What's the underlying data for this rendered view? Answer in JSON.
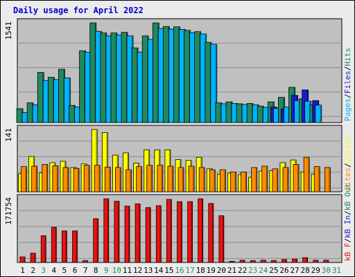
{
  "chart_data": {
    "type": "bar",
    "title": "Daily usage for April 2022",
    "categories": [
      "1",
      "2",
      "3",
      "4",
      "5",
      "6",
      "7",
      "8",
      "9",
      "10",
      "11",
      "12",
      "13",
      "14",
      "15",
      "16",
      "17",
      "18",
      "19",
      "20",
      "21",
      "22",
      "23",
      "24",
      "25",
      "26",
      "27",
      "28",
      "29",
      "30",
      "31"
    ],
    "weekend_days": [
      "3",
      "9",
      "10",
      "16",
      "17",
      "23",
      "24",
      "30",
      "31"
    ],
    "panels": [
      {
        "name": "hits-files-pages",
        "max_label": "1541",
        "ylim": [
          0,
          1541
        ],
        "grid": true,
        "legend": [
          "Pages",
          "/",
          "Files",
          "/",
          "Hits"
        ],
        "series": [
          {
            "name": "Hits",
            "color": "#1f8a5f",
            "values": [
              215,
              305,
              775,
              700,
              825,
              265,
              1110,
              1541,
              1385,
              1385,
              1395,
              1155,
              1340,
              1540,
              1485,
              1480,
              1425,
              1405,
              1240,
              305,
              320,
              290,
              295,
              255,
              320,
              390,
              545,
              370,
              275,
              0,
              0
            ]
          },
          {
            "name": "Files",
            "color": "#1a1ad0",
            "values": [
              0,
              0,
              0,
              0,
              0,
              0,
              0,
              0,
              0,
              0,
              0,
              0,
              0,
              0,
              0,
              0,
              0,
              0,
              0,
              0,
              0,
              0,
              0,
              0,
              240,
              210,
              420,
              505,
              340,
              0,
              0
            ]
          },
          {
            "name": "Pages",
            "color": "#00b4ff",
            "values": [
              155,
              275,
              650,
              665,
              690,
              240,
              1085,
              1410,
              1340,
              1355,
              1340,
              1090,
              1285,
              1455,
              1445,
              1440,
              1390,
              1370,
              1210,
              290,
              295,
              280,
              275,
              235,
              220,
              240,
              340,
              330,
              270,
              0,
              0
            ]
          }
        ]
      },
      {
        "name": "visits-sites",
        "max_label": "141",
        "ylim": [
          0,
          141
        ],
        "grid": true,
        "legend": [
          "Sites",
          "/",
          "Visits"
        ],
        "series": [
          {
            "name": "Visits",
            "color": "#ffff00",
            "values": [
              41,
              80,
              43,
              66,
              69,
              55,
              63,
              141,
              134,
              83,
              88,
              65,
              95,
              95,
              95,
              73,
              71,
              78,
              52,
              40,
              42,
              39,
              33,
              47,
              48,
              66,
              72,
              45,
              40,
              0,
              0
            ]
          },
          {
            "name": "Sites",
            "color": "#ff8c00",
            "values": [
              57,
              58,
              62,
              59,
              55,
              53,
              60,
              60,
              56,
              55,
              50,
              57,
              60,
              60,
              58,
              55,
              58,
              55,
              50,
              50,
              45,
              45,
              55,
              58,
              52,
              55,
              62,
              78,
              57,
              55,
              0
            ]
          }
        ]
      },
      {
        "name": "kbytes",
        "max_label": "171754",
        "ylim": [
          0,
          171754
        ],
        "grid": true,
        "legend": [
          "kB F",
          "/",
          "kB In",
          "/",
          "kB Out"
        ],
        "series": [
          {
            "name": "kB F",
            "color": "#ee1111",
            "values": [
              15000,
              25000,
              72000,
              95000,
              85000,
              85000,
              5000,
              118000,
              171754,
              165000,
              152000,
              158000,
              148000,
              153000,
              170000,
              164000,
              164000,
              171754,
              159000,
              126000,
              3000,
              6000,
              5000,
              6000,
              5000,
              8000,
              9000,
              13000,
              6000,
              6000,
              0
            ]
          }
        ]
      }
    ]
  }
}
